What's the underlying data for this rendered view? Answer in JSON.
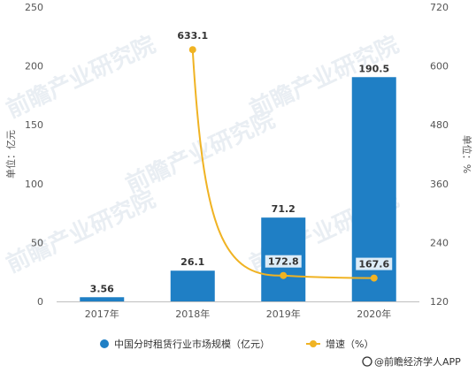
{
  "chart_data": {
    "type": "bar",
    "categories": [
      "2017年",
      "2018年",
      "2019年",
      "2020年"
    ],
    "series": [
      {
        "name": "中国分时租赁行业市场规模（亿元）",
        "type": "bar",
        "axis": "left",
        "color": "#1f7fc5",
        "values": [
          3.56,
          26.1,
          71.2,
          190.5
        ],
        "labels": [
          "3.56",
          "26.1",
          "71.2",
          "190.5"
        ]
      },
      {
        "name": "增速（%）",
        "type": "line",
        "axis": "right",
        "color": "#f0b323",
        "values": [
          null,
          633.1,
          172.8,
          167.6
        ],
        "labels": [
          "",
          "633.1",
          "172.8",
          "167.6"
        ]
      }
    ],
    "ylabel": "单位：亿元",
    "ylabel_right": "单位：%",
    "ylim": [
      0,
      250
    ],
    "ylim_right": [
      120,
      720
    ],
    "yticks": [
      "0",
      "50",
      "100",
      "150",
      "200",
      "250"
    ],
    "yticks_right": [
      "120",
      "240",
      "360",
      "480",
      "600",
      "720"
    ],
    "grid": false,
    "legend_position": "bottom"
  },
  "source": "@前瞻经济学人APP",
  "watermark": "前瞻产业研究院"
}
